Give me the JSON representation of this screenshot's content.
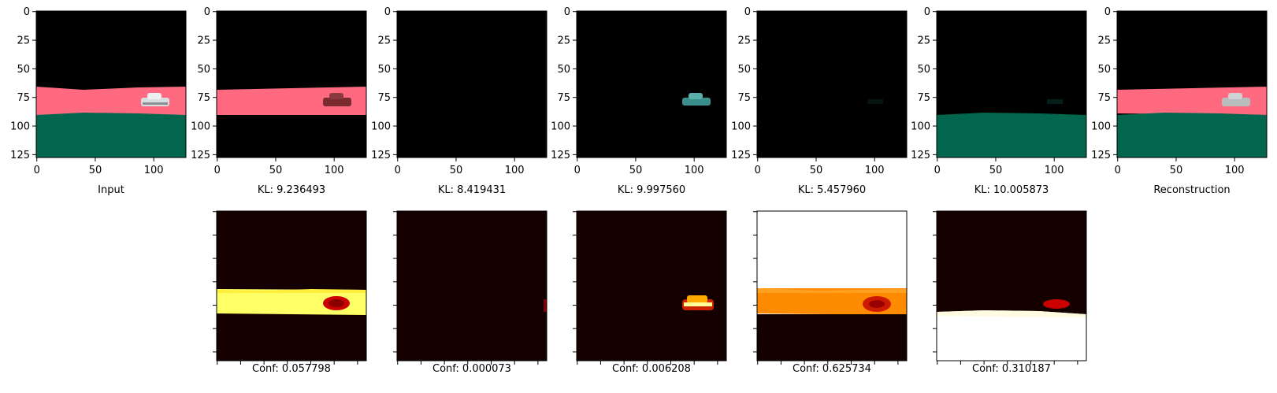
{
  "axis": {
    "yticks": [
      "0",
      "25",
      "50",
      "75",
      "100",
      "125"
    ],
    "xticks": [
      "0",
      "50",
      "100"
    ]
  },
  "panels": [
    {
      "caption": "Input",
      "image": "input"
    },
    {
      "caption": "KL: 9.236493",
      "image": "slot1"
    },
    {
      "caption": "KL: 8.419431",
      "image": "slot2"
    },
    {
      "caption": "KL: 9.997560",
      "image": "slot3"
    },
    {
      "caption": "KL: 5.457960",
      "image": "slot4"
    },
    {
      "caption": "KL: 10.005873",
      "image": "slot5"
    },
    {
      "caption": "Reconstruction",
      "image": "reconstruction"
    }
  ],
  "confidence_maps": [
    {
      "caption": "Conf: 0.057798"
    },
    {
      "caption": "Conf: 0.000073"
    },
    {
      "caption": "Conf: 0.006208"
    },
    {
      "caption": "Conf: 0.625734"
    },
    {
      "caption": "Conf: 0.310187"
    }
  ],
  "colors": {
    "background": "#000000",
    "road_pink": "#ff6a80",
    "ground_green": "#01664d",
    "car_light": "#d8dde0",
    "car_teal": "#3a8f8c",
    "heat_yellow": "#ffff66",
    "heat_red": "#cc0000",
    "heat_orange": "#ff8c00",
    "heat_dark": "#150000",
    "heat_white": "#ffffff"
  }
}
